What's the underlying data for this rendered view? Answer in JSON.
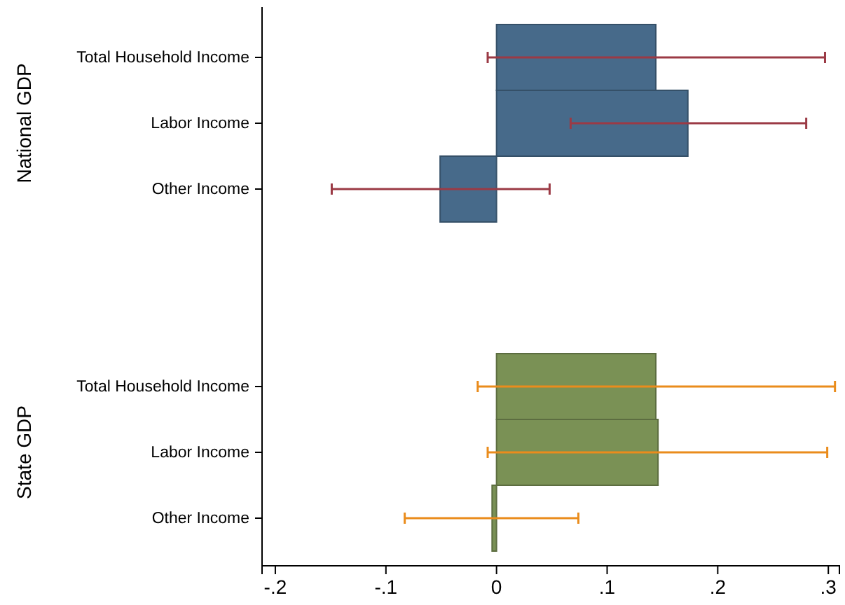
{
  "chart_data": {
    "type": "bar",
    "orientation": "horizontal",
    "categories": [
      "Total Household Income",
      "Labor Income",
      "Other Income",
      null,
      null,
      "Total Household Income",
      "Labor Income",
      "Other Income"
    ],
    "series": [
      {
        "color": "#476a8a",
        "values": [
          0.144,
          0.173,
          -0.051,
          null,
          null,
          null,
          null,
          null
        ],
        "errors": [
          [
            -0.008,
            0.297
          ],
          [
            0.067,
            0.28
          ],
          [
            -0.149,
            0.048
          ],
          null,
          null,
          null,
          null,
          null
        ]
      },
      {
        "color": "#7a9155",
        "values": [
          null,
          null,
          null,
          null,
          null,
          0.144,
          0.146,
          -0.004
        ],
        "errors": [
          null,
          null,
          null,
          null,
          null,
          [
            -0.017,
            0.306
          ],
          [
            -0.008,
            0.299
          ],
          [
            -0.083,
            0.074
          ]
        ]
      }
    ],
    "annotations": [
      "National GDP",
      "State GDP"
    ],
    "xlim": [
      -0.212,
      0.31
    ],
    "xticks": [
      {
        "value": -0.2,
        "label": "-.2"
      },
      {
        "value": -0.1,
        "label": "-.1"
      },
      0,
      {
        "value": 0.1,
        "label": ".1"
      },
      {
        "value": 0.2,
        "label": ".2"
      },
      {
        "value": 0.3,
        "label": ".3"
      }
    ]
  }
}
